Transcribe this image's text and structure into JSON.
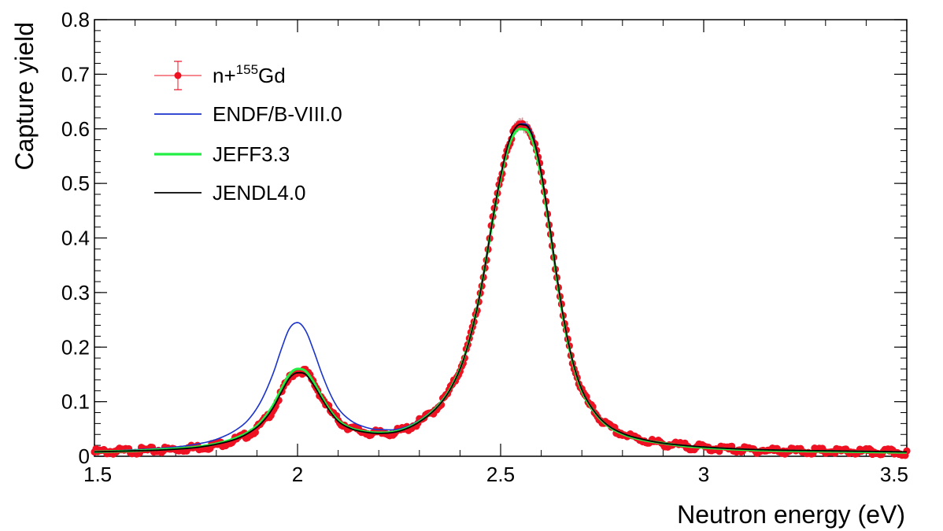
{
  "chart_data": {
    "type": "line",
    "title": "",
    "xlabel": "Neutron energy (eV)",
    "ylabel": "Capture yield",
    "xlim": [
      1.5,
      3.5
    ],
    "ylim": [
      0,
      0.8
    ],
    "x_ticks": [
      1.5,
      2,
      2.5,
      3,
      3.5
    ],
    "x_tick_labels": [
      "1.5",
      "2",
      "2.5",
      "3",
      "3.5"
    ],
    "y_ticks": [
      0,
      0.1,
      0.2,
      0.3,
      0.4,
      0.5,
      0.6,
      0.7,
      0.8
    ],
    "y_tick_labels": [
      "0",
      "0.1",
      "0.2",
      "0.3",
      "0.4",
      "0.5",
      "0.6",
      "0.7",
      "0.8"
    ],
    "grid": false,
    "legend_position": "top-left",
    "legend": [
      {
        "id": "data",
        "label_prefix": "n+",
        "label_sup": "155",
        "label_suffix": "Gd",
        "style": "points-errorbars",
        "color": "#ee1122"
      },
      {
        "id": "endf",
        "label": "ENDF/B-VIII.0",
        "style": "line",
        "color": "#1a33cc"
      },
      {
        "id": "jeff",
        "label": "JEFF3.3",
        "style": "line",
        "color": "#22ee44"
      },
      {
        "id": "jendl",
        "label": "JENDL4.0",
        "style": "line",
        "color": "#000000"
      }
    ],
    "series": [
      {
        "name": "n+155Gd",
        "kind": "measured",
        "color": "#ee1122",
        "x": [
          1.5,
          1.55,
          1.6,
          1.65,
          1.7,
          1.75,
          1.8,
          1.85,
          1.88,
          1.91,
          1.94,
          1.96,
          1.98,
          2.0,
          2.02,
          2.04,
          2.06,
          2.08,
          2.1,
          2.13,
          2.16,
          2.2,
          2.25,
          2.3,
          2.35,
          2.38,
          2.41,
          2.44,
          2.46,
          2.48,
          2.5,
          2.52,
          2.54,
          2.56,
          2.58,
          2.6,
          2.62,
          2.64,
          2.66,
          2.68,
          2.7,
          2.73,
          2.76,
          2.8,
          2.85,
          2.9,
          2.95,
          3.0,
          3.1,
          3.2,
          3.3,
          3.4,
          3.5
        ],
        "y": [
          0.008,
          0.009,
          0.01,
          0.011,
          0.013,
          0.016,
          0.021,
          0.031,
          0.041,
          0.058,
          0.087,
          0.115,
          0.143,
          0.156,
          0.154,
          0.134,
          0.108,
          0.084,
          0.066,
          0.052,
          0.045,
          0.042,
          0.046,
          0.063,
          0.095,
          0.128,
          0.18,
          0.263,
          0.34,
          0.43,
          0.51,
          0.572,
          0.602,
          0.606,
          0.582,
          0.517,
          0.423,
          0.32,
          0.232,
          0.166,
          0.121,
          0.082,
          0.058,
          0.041,
          0.03,
          0.023,
          0.019,
          0.016,
          0.012,
          0.01,
          0.009,
          0.008,
          0.007
        ]
      },
      {
        "name": "ENDF/B-VIII.0",
        "kind": "evaluation",
        "color": "#1a33cc",
        "x": [
          1.5,
          1.55,
          1.6,
          1.65,
          1.7,
          1.75,
          1.8,
          1.85,
          1.88,
          1.91,
          1.94,
          1.96,
          1.98,
          2.0,
          2.02,
          2.04,
          2.06,
          2.08,
          2.1,
          2.13,
          2.16,
          2.2,
          2.25,
          2.3,
          2.35,
          2.38,
          2.41,
          2.44,
          2.46,
          2.48,
          2.5,
          2.52,
          2.54,
          2.56,
          2.58,
          2.6,
          2.62,
          2.64,
          2.66,
          2.68,
          2.7,
          2.73,
          2.76,
          2.8,
          2.85,
          2.9,
          2.95,
          3.0,
          3.1,
          3.2,
          3.3,
          3.4,
          3.5
        ],
        "y": [
          0.009,
          0.01,
          0.012,
          0.014,
          0.017,
          0.022,
          0.031,
          0.049,
          0.068,
          0.101,
          0.152,
          0.196,
          0.234,
          0.245,
          0.23,
          0.193,
          0.151,
          0.115,
          0.088,
          0.066,
          0.055,
          0.049,
          0.05,
          0.066,
          0.098,
          0.131,
          0.183,
          0.266,
          0.343,
          0.433,
          0.513,
          0.575,
          0.605,
          0.609,
          0.585,
          0.519,
          0.425,
          0.322,
          0.233,
          0.167,
          0.122,
          0.083,
          0.059,
          0.042,
          0.031,
          0.024,
          0.02,
          0.017,
          0.013,
          0.011,
          0.01,
          0.009,
          0.008
        ]
      },
      {
        "name": "JEFF3.3",
        "kind": "evaluation",
        "color": "#22ee44",
        "x": [
          1.5,
          1.55,
          1.6,
          1.65,
          1.7,
          1.75,
          1.8,
          1.85,
          1.88,
          1.91,
          1.94,
          1.96,
          1.98,
          2.0,
          2.02,
          2.04,
          2.06,
          2.08,
          2.1,
          2.13,
          2.16,
          2.2,
          2.25,
          2.3,
          2.35,
          2.38,
          2.41,
          2.44,
          2.46,
          2.48,
          2.5,
          2.52,
          2.54,
          2.56,
          2.58,
          2.6,
          2.62,
          2.64,
          2.66,
          2.68,
          2.7,
          2.73,
          2.76,
          2.8,
          2.85,
          2.9,
          2.95,
          3.0,
          3.1,
          3.2,
          3.3,
          3.4,
          3.5
        ],
        "y": [
          0.008,
          0.009,
          0.01,
          0.012,
          0.014,
          0.017,
          0.023,
          0.034,
          0.045,
          0.063,
          0.094,
          0.123,
          0.15,
          0.16,
          0.156,
          0.135,
          0.108,
          0.084,
          0.066,
          0.052,
          0.046,
          0.043,
          0.047,
          0.064,
          0.096,
          0.129,
          0.181,
          0.265,
          0.342,
          0.431,
          0.51,
          0.569,
          0.597,
          0.599,
          0.575,
          0.512,
          0.42,
          0.318,
          0.23,
          0.165,
          0.12,
          0.082,
          0.058,
          0.041,
          0.03,
          0.024,
          0.019,
          0.016,
          0.012,
          0.01,
          0.009,
          0.008,
          0.007
        ]
      },
      {
        "name": "JENDL4.0",
        "kind": "evaluation",
        "color": "#000000",
        "x": [
          1.5,
          1.55,
          1.6,
          1.65,
          1.7,
          1.75,
          1.8,
          1.85,
          1.88,
          1.91,
          1.94,
          1.96,
          1.98,
          2.0,
          2.02,
          2.04,
          2.06,
          2.08,
          2.1,
          2.13,
          2.16,
          2.2,
          2.25,
          2.3,
          2.35,
          2.38,
          2.41,
          2.44,
          2.46,
          2.48,
          2.5,
          2.52,
          2.54,
          2.56,
          2.58,
          2.6,
          2.62,
          2.64,
          2.66,
          2.68,
          2.7,
          2.73,
          2.76,
          2.8,
          2.85,
          2.9,
          2.95,
          3.0,
          3.1,
          3.2,
          3.3,
          3.4,
          3.5
        ],
        "y": [
          0.008,
          0.009,
          0.01,
          0.011,
          0.013,
          0.016,
          0.022,
          0.032,
          0.043,
          0.06,
          0.089,
          0.117,
          0.143,
          0.153,
          0.15,
          0.13,
          0.105,
          0.082,
          0.064,
          0.051,
          0.045,
          0.042,
          0.046,
          0.063,
          0.095,
          0.128,
          0.18,
          0.264,
          0.341,
          0.432,
          0.513,
          0.575,
          0.605,
          0.607,
          0.583,
          0.519,
          0.425,
          0.322,
          0.233,
          0.167,
          0.122,
          0.083,
          0.059,
          0.042,
          0.031,
          0.024,
          0.02,
          0.017,
          0.013,
          0.011,
          0.01,
          0.009,
          0.008
        ]
      }
    ]
  }
}
